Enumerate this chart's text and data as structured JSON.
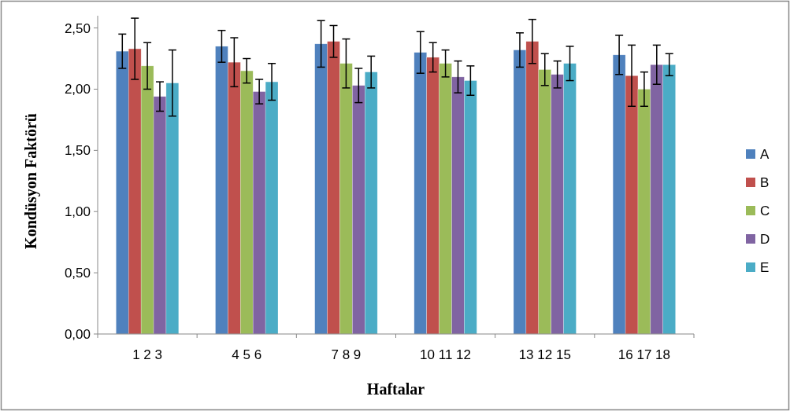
{
  "chart_data": {
    "type": "bar",
    "xlabel": "Haftalar",
    "ylabel": "Kondüsyon Faktörü",
    "categories": [
      "1 2 3",
      "4 5 6",
      "7 8 9",
      "10 11 12",
      "13 12 15",
      "16 17 18"
    ],
    "series": [
      {
        "name": "A",
        "color": "#4f81bd",
        "values": [
          2.31,
          2.35,
          2.37,
          2.3,
          2.32,
          2.28
        ],
        "errors": [
          0.14,
          0.13,
          0.19,
          0.17,
          0.14,
          0.16
        ]
      },
      {
        "name": "B",
        "color": "#c0504d",
        "values": [
          2.33,
          2.22,
          2.39,
          2.26,
          2.39,
          2.11
        ],
        "errors": [
          0.25,
          0.2,
          0.13,
          0.12,
          0.18,
          0.25
        ]
      },
      {
        "name": "C",
        "color": "#9bbb59",
        "values": [
          2.19,
          2.15,
          2.21,
          2.21,
          2.16,
          2.0
        ],
        "errors": [
          0.19,
          0.1,
          0.2,
          0.11,
          0.13,
          0.14
        ]
      },
      {
        "name": "D",
        "color": "#8064a2",
        "values": [
          1.94,
          1.98,
          2.03,
          2.1,
          2.12,
          2.2
        ],
        "errors": [
          0.12,
          0.1,
          0.14,
          0.13,
          0.11,
          0.16
        ]
      },
      {
        "name": "E",
        "color": "#4bacc6",
        "values": [
          2.05,
          2.06,
          2.14,
          2.07,
          2.21,
          2.2
        ],
        "errors": [
          0.27,
          0.15,
          0.13,
          0.12,
          0.14,
          0.09
        ]
      }
    ],
    "ylim": [
      0,
      2.6
    ],
    "yticks": [
      {
        "value": 0,
        "label": "0,00"
      },
      {
        "value": 0.5,
        "label": "0,50"
      },
      {
        "value": 1,
        "label": "1,00"
      },
      {
        "value": 1.5,
        "label": "1,50"
      },
      {
        "value": 2,
        "label": "2,00"
      },
      {
        "value": 2.5,
        "label": "2,50"
      }
    ],
    "legend": "right",
    "grid": false
  }
}
